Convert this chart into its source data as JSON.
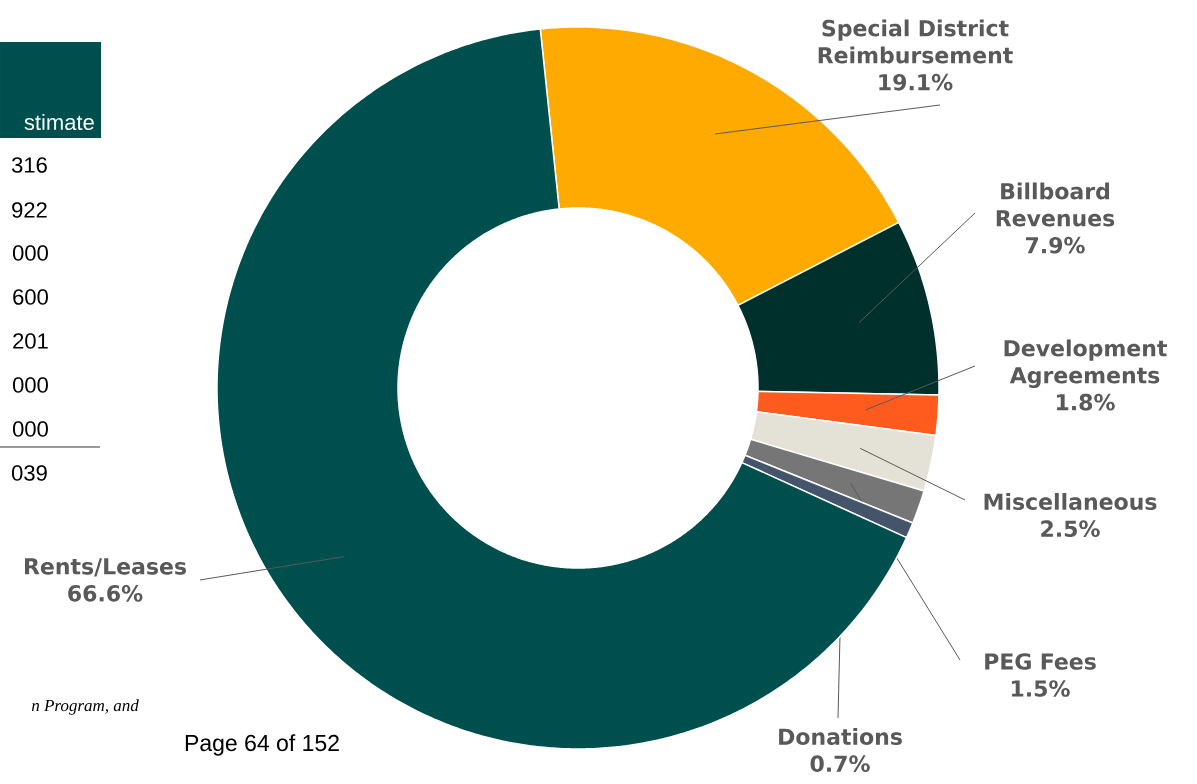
{
  "chart_data": {
    "type": "donut",
    "categories": [
      "Special District Reimbursement",
      "Billboard Revenues",
      "Development Agreements",
      "Miscellaneous",
      "PEG Fees",
      "Donations",
      "Rents/Leases"
    ],
    "values": [
      19.1,
      7.9,
      1.8,
      2.5,
      1.5,
      0.7,
      66.6
    ],
    "value_labels": [
      "19.1%",
      "7.9%",
      "1.8%",
      "2.5%",
      "1.5%",
      "0.7%",
      "66.6%"
    ],
    "colors": [
      "#ffaa00",
      "#00302c",
      "#ff5b1f",
      "#e4e1d6",
      "#767676",
      "#44546a",
      "#004f4f"
    ],
    "annotations": [
      "stimate",
      "316",
      "922",
      "000",
      "600",
      "201",
      "000",
      "000",
      "039",
      "n Program, and",
      "Page 64 of 152"
    ]
  }
}
